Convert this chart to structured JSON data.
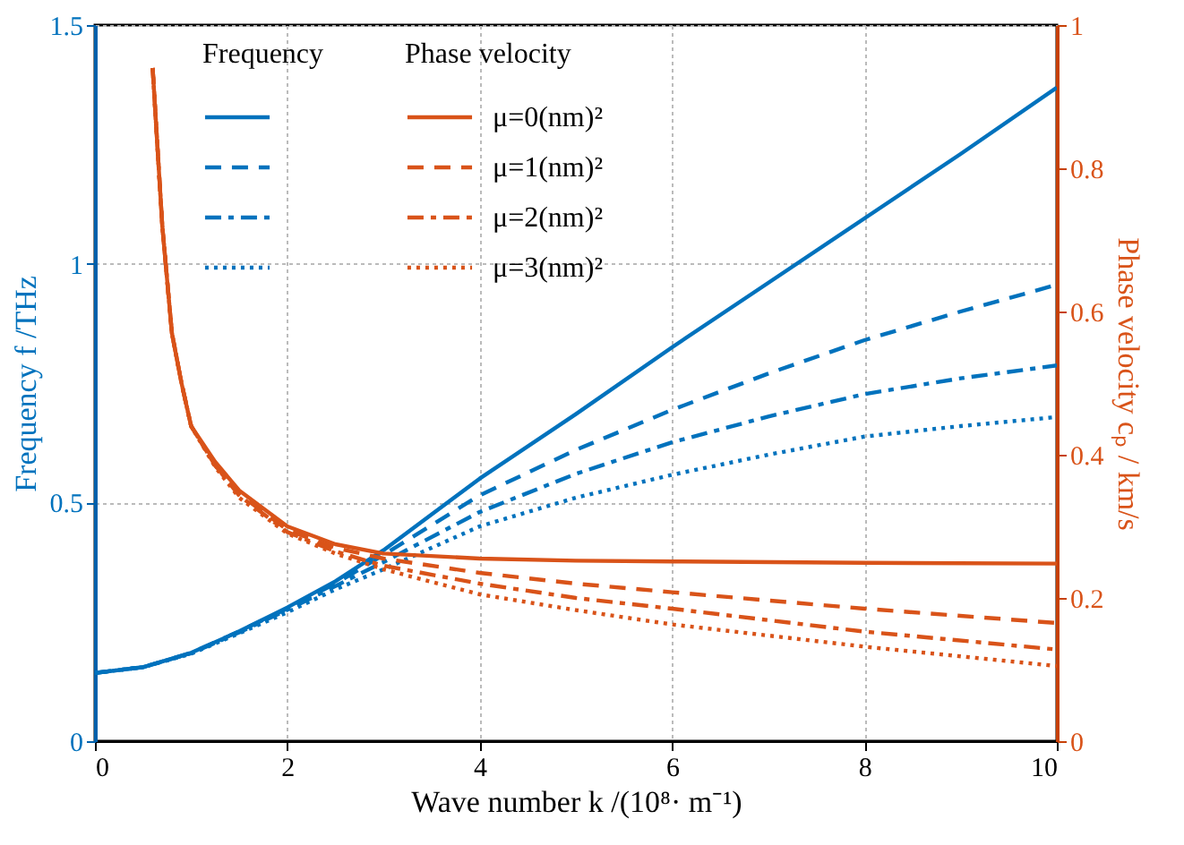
{
  "chart_data": {
    "type": "line",
    "xlabel": "Wave number k /(10⁸· m⁻¹)",
    "ylabel": "Frequency  f /THz",
    "y2label": "Phase velocity  cₚ / km/s",
    "xlim": [
      0,
      10
    ],
    "xticks": [
      0,
      2,
      4,
      6,
      8,
      10
    ],
    "ylim": [
      0,
      1.5
    ],
    "yticks": [
      0,
      0.5,
      1,
      1.5
    ],
    "y2lim": [
      0,
      1
    ],
    "y2ticks": [
      0,
      0.2,
      0.4,
      0.6,
      0.8,
      1
    ],
    "grid": true,
    "legend": "top left",
    "annotations": [
      "Frequency",
      "Phase velocity"
    ],
    "series": [
      {
        "color": "#0072bd",
        "line_style": "solid",
        "x": [
          0,
          0.5,
          1,
          1.5,
          2,
          2.5,
          3,
          4,
          5,
          6,
          7,
          8,
          9,
          10
        ],
        "values": [
          0.143,
          0.155,
          0.185,
          0.23,
          0.28,
          0.335,
          0.4,
          0.55,
          0.685,
          0.825,
          0.96,
          1.095,
          1.23,
          1.369
        ]
      },
      {
        "color": "#0072bd",
        "line_style": "dashed",
        "x": [
          0,
          0.5,
          1,
          1.5,
          2,
          2.5,
          3,
          4,
          5,
          6,
          7,
          8,
          9,
          10
        ],
        "values": [
          0.143,
          0.155,
          0.185,
          0.23,
          0.278,
          0.33,
          0.39,
          0.515,
          0.61,
          0.694,
          0.77,
          0.84,
          0.9,
          0.956
        ]
      },
      {
        "color": "#0072bd",
        "line_style": "dashdot",
        "x": [
          0,
          0.5,
          1,
          1.5,
          2,
          2.5,
          3,
          4,
          5,
          6,
          7,
          8,
          9,
          10
        ],
        "values": [
          0.143,
          0.155,
          0.184,
          0.228,
          0.275,
          0.325,
          0.375,
          0.48,
          0.56,
          0.626,
          0.68,
          0.727,
          0.76,
          0.787
        ]
      },
      {
        "color": "#0072bd",
        "line_style": "dotted",
        "x": [
          0,
          0.5,
          1,
          1.5,
          2,
          2.5,
          3,
          4,
          5,
          6,
          7,
          8,
          9,
          10
        ],
        "values": [
          0.143,
          0.155,
          0.183,
          0.226,
          0.27,
          0.318,
          0.36,
          0.45,
          0.51,
          0.558,
          0.6,
          0.638,
          0.66,
          0.679
        ]
      },
      {
        "name": "μ=0(nm)²",
        "color": "#d95319",
        "line_style": "solid",
        "axis": "y2",
        "x": [
          0.6,
          0.7,
          0.8,
          0.9,
          1,
          1.25,
          1.5,
          2,
          2.5,
          3,
          4,
          5,
          6,
          8,
          10
        ],
        "values": [
          0.94,
          0.72,
          0.57,
          0.5,
          0.44,
          0.39,
          0.35,
          0.3,
          0.275,
          0.262,
          0.255,
          0.252,
          0.251,
          0.249,
          0.248
        ]
      },
      {
        "name": "μ=1(nm)²",
        "color": "#d95319",
        "line_style": "dashed",
        "axis": "y2",
        "x": [
          0.6,
          0.7,
          0.8,
          0.9,
          1,
          1.25,
          1.5,
          2,
          2.5,
          3,
          4,
          5,
          6,
          8,
          10
        ],
        "values": [
          0.94,
          0.72,
          0.57,
          0.5,
          0.44,
          0.385,
          0.345,
          0.295,
          0.27,
          0.255,
          0.235,
          0.22,
          0.208,
          0.185,
          0.165
        ]
      },
      {
        "name": "μ=2(nm)²",
        "color": "#d95319",
        "line_style": "dashdot",
        "axis": "y2",
        "x": [
          0.6,
          0.7,
          0.8,
          0.9,
          1,
          1.25,
          1.5,
          2,
          2.5,
          3,
          4,
          5,
          6,
          8,
          10
        ],
        "values": [
          0.94,
          0.72,
          0.57,
          0.5,
          0.44,
          0.385,
          0.343,
          0.292,
          0.265,
          0.245,
          0.22,
          0.2,
          0.185,
          0.153,
          0.128
        ]
      },
      {
        "name": "μ=3(nm)²",
        "color": "#d95319",
        "line_style": "dotted",
        "axis": "y2",
        "x": [
          0.6,
          0.7,
          0.8,
          0.9,
          1,
          1.25,
          1.5,
          2,
          2.5,
          3,
          4,
          5,
          6,
          8,
          10
        ],
        "values": [
          0.94,
          0.72,
          0.57,
          0.5,
          0.44,
          0.383,
          0.34,
          0.29,
          0.262,
          0.24,
          0.205,
          0.183,
          0.163,
          0.132,
          0.105
        ]
      }
    ]
  }
}
